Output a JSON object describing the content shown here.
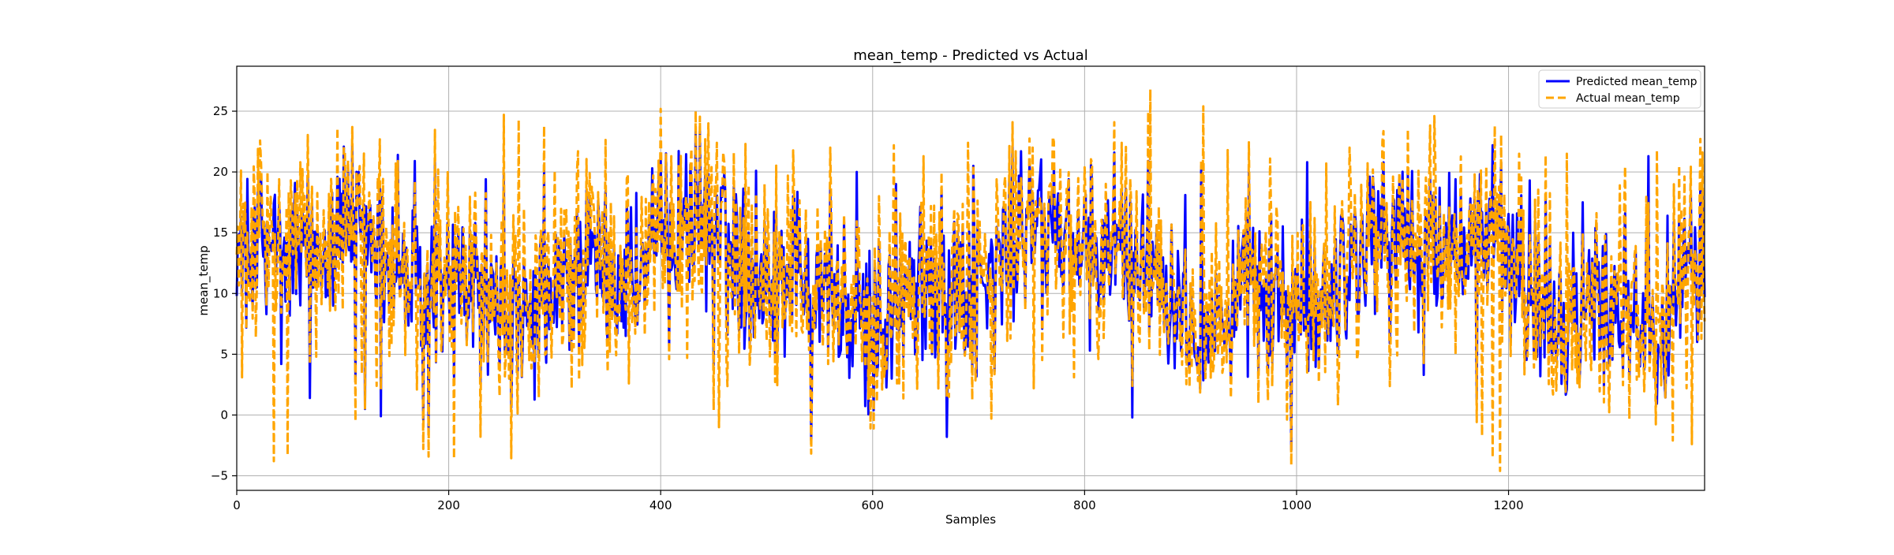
{
  "chart_data": {
    "type": "line",
    "title": "mean_temp - Predicted vs Actual",
    "xlabel": "Samples",
    "ylabel": "mean_temp",
    "xlim": [
      0,
      1385
    ],
    "ylim": [
      -6.2,
      28.7
    ],
    "xticks": [
      0,
      200,
      400,
      600,
      800,
      1000,
      1200
    ],
    "yticks": [
      -5,
      0,
      5,
      10,
      15,
      20,
      25
    ],
    "grid": true,
    "legend_position": "top-right",
    "n_samples": 1386,
    "series": [
      {
        "name": "Predicted mean_temp",
        "color": "#0000ff",
        "style": "solid",
        "anchors": [
          [
            0,
            9.8
          ],
          [
            4,
            16.3
          ],
          [
            9,
            7.2
          ],
          [
            16,
            16.1
          ],
          [
            22,
            18.7
          ],
          [
            28,
            8.3
          ],
          [
            35,
            17.4
          ],
          [
            42,
            4.2
          ],
          [
            55,
            19.1
          ],
          [
            69,
            1.4
          ],
          [
            83,
            15.2
          ],
          [
            95,
            19.6
          ],
          [
            112,
            2.9
          ],
          [
            121,
            0.5
          ],
          [
            136,
            -0.1
          ],
          [
            152,
            21.4
          ],
          [
            168,
            20.9
          ],
          [
            176,
            -0.4
          ],
          [
            181,
            -1.3
          ],
          [
            187,
            20.8
          ],
          [
            205,
            3.1
          ],
          [
            220,
            15.2
          ],
          [
            235,
            19.4
          ],
          [
            252,
            19.9
          ],
          [
            270,
            6.5
          ],
          [
            290,
            20.1
          ],
          [
            315,
            14.0
          ],
          [
            330,
            18.5
          ],
          [
            352,
            8.4
          ],
          [
            368,
            17.3
          ],
          [
            392,
            20.3
          ],
          [
            408,
            5.7
          ],
          [
            428,
            20.6
          ],
          [
            450,
            4.1
          ],
          [
            472,
            16.3
          ],
          [
            490,
            20.1
          ],
          [
            510,
            5.2
          ],
          [
            525,
            18.0
          ],
          [
            542,
            -2.1
          ],
          [
            560,
            18.5
          ],
          [
            585,
            20.0
          ],
          [
            600,
            6.2
          ],
          [
            622,
            19.0
          ],
          [
            640,
            5.0
          ],
          [
            665,
            18.6
          ],
          [
            670,
            -1.8
          ],
          [
            695,
            20.5
          ],
          [
            715,
            3.6
          ],
          [
            740,
            21.7
          ],
          [
            760,
            7.1
          ],
          [
            785,
            19.4
          ],
          [
            805,
            5.3
          ],
          [
            828,
            21.6
          ],
          [
            845,
            -0.2
          ],
          [
            860,
            20.9
          ],
          [
            880,
            6.3
          ],
          [
            895,
            18.1
          ],
          [
            910,
            20.5
          ],
          [
            932,
            5.7
          ],
          [
            955,
            20.0
          ],
          [
            975,
            4.9
          ],
          [
            995,
            -2.9
          ],
          [
            1010,
            20.8
          ],
          [
            1032,
            6.1
          ],
          [
            1055,
            17.0
          ],
          [
            1072,
            19.6
          ],
          [
            1088,
            5.9
          ],
          [
            1105,
            19.8
          ],
          [
            1120,
            3.3
          ],
          [
            1135,
            18.7
          ],
          [
            1150,
            19.4
          ],
          [
            1170,
            1.3
          ],
          [
            1185,
            22.2
          ],
          [
            1202,
            6.0
          ],
          [
            1220,
            19.3
          ],
          [
            1235,
            17.7
          ],
          [
            1255,
            2.1
          ],
          [
            1270,
            17.5
          ],
          [
            1290,
            2.3
          ],
          [
            1310,
            16.6
          ],
          [
            1332,
            21.3
          ],
          [
            1350,
            16.4
          ],
          [
            1365,
            14.5
          ],
          [
            1385,
            9.7
          ]
        ]
      },
      {
        "name": "Actual mean_temp",
        "color": "#ffa500",
        "style": "dashed",
        "anchors": [
          [
            0,
            13.2
          ],
          [
            5,
            3.1
          ],
          [
            14,
            17.1
          ],
          [
            20,
            21.9
          ],
          [
            30,
            10.6
          ],
          [
            35,
            -3.8
          ],
          [
            48,
            -3.3
          ],
          [
            60,
            20.8
          ],
          [
            75,
            4.8
          ],
          [
            102,
            21.8
          ],
          [
            118,
            3.4
          ],
          [
            132,
            2.4
          ],
          [
            150,
            20.7
          ],
          [
            170,
            2.1
          ],
          [
            190,
            20.2
          ],
          [
            205,
            -3.6
          ],
          [
            225,
            18.3
          ],
          [
            252,
            24.7
          ],
          [
            266,
            24.3
          ],
          [
            280,
            5.7
          ],
          [
            300,
            20.1
          ],
          [
            322,
            21.7
          ],
          [
            345,
            16.8
          ],
          [
            370,
            2.6
          ],
          [
            395,
            18.6
          ],
          [
            410,
            21.3
          ],
          [
            425,
            4.7
          ],
          [
            455,
            -1.0
          ],
          [
            480,
            22.3
          ],
          [
            500,
            6.1
          ],
          [
            520,
            19.7
          ],
          [
            545,
            7.1
          ],
          [
            560,
            22.0
          ],
          [
            578,
            5.9
          ],
          [
            598,
            -1.1
          ],
          [
            620,
            22.2
          ],
          [
            648,
            21.3
          ],
          [
            672,
            1.5
          ],
          [
            690,
            22.4
          ],
          [
            712,
            -0.3
          ],
          [
            735,
            21.7
          ],
          [
            752,
            2.2
          ],
          [
            770,
            22.9
          ],
          [
            790,
            3.1
          ],
          [
            812,
            6.1
          ],
          [
            835,
            22.4
          ],
          [
            853,
            13.5
          ],
          [
            862,
            26.8
          ],
          [
            872,
            16.0
          ],
          [
            890,
            6.0
          ],
          [
            912,
            25.4
          ],
          [
            935,
            21.8
          ],
          [
            960,
            5.7
          ],
          [
            975,
            21.1
          ],
          [
            995,
            -4.1
          ],
          [
            1010,
            3.5
          ],
          [
            1028,
            20.7
          ],
          [
            1050,
            22.0
          ],
          [
            1072,
            20.2
          ],
          [
            1095,
            4.9
          ],
          [
            1115,
            20.1
          ],
          [
            1130,
            24.6
          ],
          [
            1150,
            5.0
          ],
          [
            1168,
            19.8
          ],
          [
            1175,
            -1.7
          ],
          [
            1185,
            -3.5
          ],
          [
            1187,
            23.8
          ],
          [
            1192,
            -4.6
          ],
          [
            1210,
            21.5
          ],
          [
            1230,
            5.7
          ],
          [
            1255,
            21.5
          ],
          [
            1278,
            3.7
          ],
          [
            1305,
            18.9
          ],
          [
            1325,
            5.2
          ],
          [
            1340,
            21.8
          ],
          [
            1355,
            -2.1
          ],
          [
            1368,
            2.2
          ],
          [
            1373,
            -2.4
          ],
          [
            1380,
            15.6
          ],
          [
            1385,
            7.7
          ]
        ]
      }
    ]
  }
}
